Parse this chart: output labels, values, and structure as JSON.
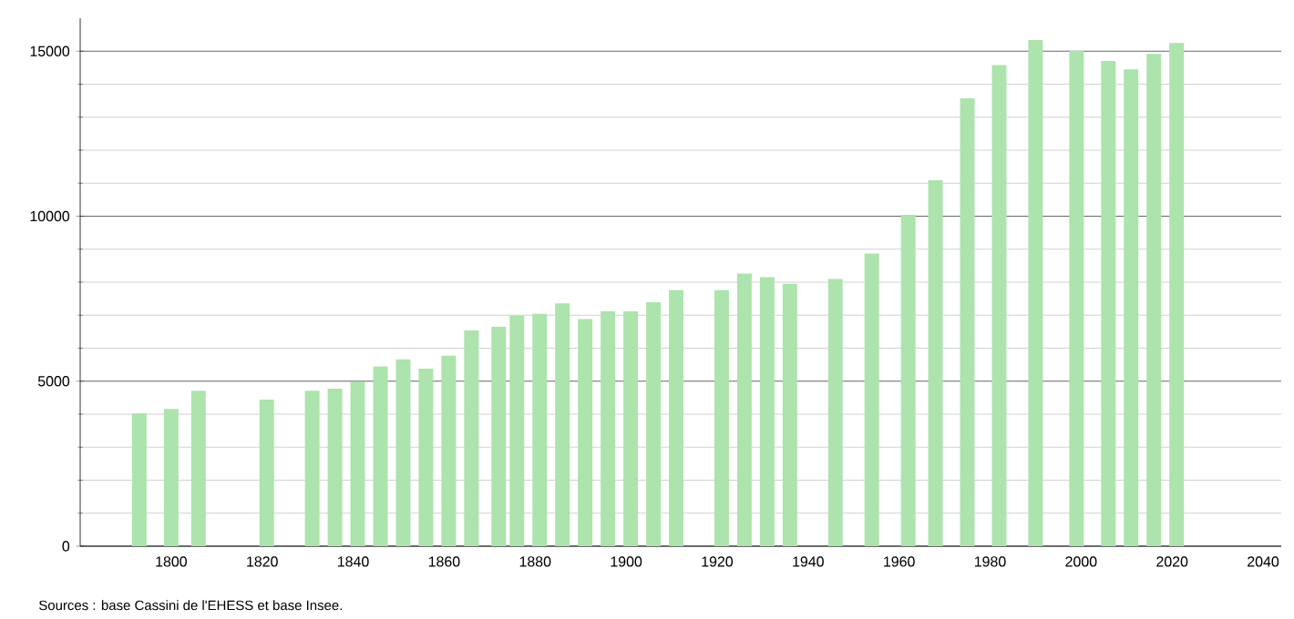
{
  "chart_data": {
    "type": "bar",
    "color": "#ade3ad",
    "x": [
      1793,
      1800,
      1806,
      1821,
      1831,
      1836,
      1841,
      1846,
      1851,
      1856,
      1861,
      1866,
      1872,
      1876,
      1881,
      1886,
      1891,
      1896,
      1901,
      1906,
      1911,
      1921,
      1926,
      1931,
      1936,
      1946,
      1954,
      1962,
      1968,
      1975,
      1982,
      1990,
      1999,
      2006,
      2011,
      2016,
      2021
    ],
    "values": [
      4030,
      4160,
      4710,
      4440,
      4710,
      4770,
      4990,
      5450,
      5660,
      5380,
      5770,
      6540,
      6650,
      6990,
      7040,
      7360,
      6880,
      7120,
      7120,
      7390,
      7760,
      7760,
      8260,
      8150,
      7950,
      8100,
      8870,
      10040,
      11090,
      13570,
      14580,
      15340,
      15010,
      14700,
      14450,
      14920,
      15250
    ],
    "xlim": [
      1780,
      2044
    ],
    "xticks": [
      1800,
      1820,
      1840,
      1860,
      1880,
      1900,
      1920,
      1940,
      1960,
      1980,
      2000,
      2020,
      2040
    ],
    "ylim": [
      0,
      16000
    ],
    "yticks": [
      0,
      5000,
      10000,
      15000
    ],
    "grid": true,
    "annotations": [
      "Sources : base Cassini de l'EHESS et base Insee."
    ]
  }
}
